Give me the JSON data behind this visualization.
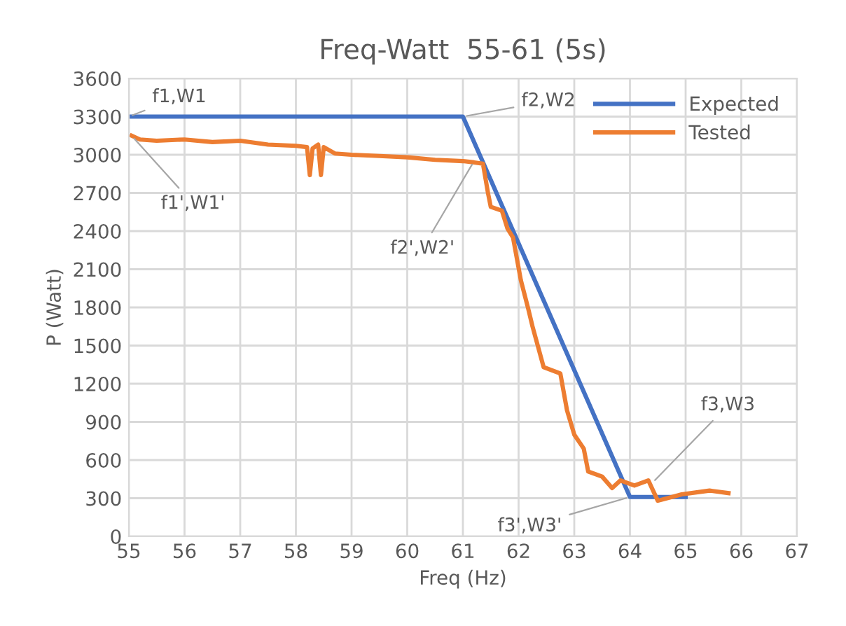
{
  "chart_data": {
    "type": "line",
    "title": "Freq-Watt  55-61 (5s)",
    "xlabel": "Freq (Hz)",
    "ylabel": "P (Watt)",
    "xlim": [
      55,
      67
    ],
    "xticks": [
      55,
      56,
      57,
      58,
      59,
      60,
      61,
      62,
      63,
      64,
      65,
      66,
      67
    ],
    "ylim": [
      0,
      3600
    ],
    "yticks": [
      0,
      300,
      600,
      900,
      1200,
      1500,
      1800,
      2100,
      2400,
      2700,
      3000,
      3300,
      3600
    ],
    "grid": true,
    "legend": "top right",
    "marker": "none",
    "line_style": "solid",
    "series": [
      {
        "name": "Expected",
        "color": "#4472c4",
        "x": [
          55,
          61,
          64,
          65
        ],
        "values": [
          3300,
          3300,
          310,
          310
        ]
      },
      {
        "name": "Tested",
        "color": "#ed7d31",
        "x": [
          55.05,
          55.2,
          55.5,
          56,
          56.5,
          57,
          57.5,
          58,
          58.2,
          58.25,
          58.3,
          58.4,
          58.45,
          58.5,
          58.7,
          59,
          59.5,
          60,
          60.5,
          61,
          61.2,
          61.36,
          61.45,
          61.5,
          61.7,
          61.8,
          61.9,
          62.04,
          62.17,
          62.25,
          62.45,
          62.75,
          62.87,
          63.0,
          63.17,
          63.25,
          63.5,
          63.68,
          63.83,
          64.08,
          64.33,
          64.5,
          64.93,
          65.43,
          65.77
        ],
        "values": [
          3150,
          3120,
          3110,
          3120,
          3100,
          3110,
          3080,
          3070,
          3060,
          2840,
          3050,
          3080,
          2840,
          3060,
          3010,
          3000,
          2990,
          2980,
          2960,
          2950,
          2940,
          2930,
          2700,
          2590,
          2560,
          2420,
          2350,
          2015,
          1795,
          1650,
          1330,
          1280,
          990,
          800,
          690,
          510,
          470,
          380,
          440,
          400,
          440,
          280,
          330,
          360,
          340
        ]
      }
    ],
    "annotations": [
      {
        "text": "f1,W1",
        "x": 55,
        "y": 3300
      },
      {
        "text": "f1',W1'",
        "x": 55.05,
        "y": 3150
      },
      {
        "text": "f2,W2",
        "x": 61,
        "y": 3300
      },
      {
        "text": "f2',W2'",
        "x": 61.2,
        "y": 2950
      },
      {
        "text": "f3,W3",
        "x": 64.4,
        "y": 420
      },
      {
        "text": "f3',W3'",
        "x": 64,
        "y": 310
      }
    ]
  }
}
